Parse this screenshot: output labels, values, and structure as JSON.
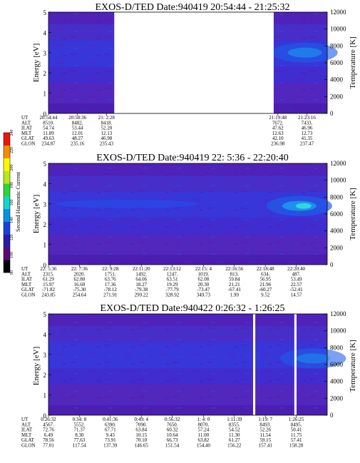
{
  "colorbar": {
    "label": "Second Harmonic Current",
    "ticks": [
      "80",
      "100",
      "120",
      "140",
      "160",
      "180",
      "200",
      "220",
      "240"
    ],
    "colors": [
      "#000000",
      "#5a0a78",
      "#2a1aa8",
      "#1840e0",
      "#0a90e8",
      "#10d8c8",
      "#28d838",
      "#b8e818",
      "#f8f800",
      "#f88c00",
      "#e81808"
    ]
  },
  "chart_data": [
    {
      "type": "heatmap",
      "title": "EXOS-D/TED   Date:940419  20:54:44 - 21:25:32",
      "ylabel": "Energy [eV]",
      "ylabel_right": "Temperature [K]",
      "ylim": [
        0,
        5
      ],
      "ylim_right": [
        0,
        12000
      ],
      "y_ticks": [
        "0",
        "1",
        "2",
        "3",
        "4",
        "5"
      ],
      "y_ticks_right": [
        "0",
        "2000",
        "4000",
        "6000",
        "8000",
        "10000",
        "12000"
      ],
      "data_gaps": [
        [
          0.236,
          0.808
        ]
      ],
      "intensity_peak": {
        "x_fraction": 0.92,
        "energy_eV": 3.0,
        "strength": 0.55
      },
      "ephemeris": {
        "labels": [
          "UT",
          "ALT",
          "ILAT",
          "MLT",
          "GLAT",
          "GLON"
        ],
        "columns": [
          {
            "x_fraction": 0.0,
            "values": [
              "20:54:44",
              "8510.",
              "54.74",
              "11.89",
              "49.63",
              "234.87"
            ]
          },
          {
            "x_fraction": 0.104,
            "values": [
              "20:58:36",
              "8482.",
              "53.44",
              "12.01",
              "48.27",
              "235.16"
            ]
          },
          {
            "x_fraction": 0.208,
            "values": [
              "21: 2:28",
              "8418.",
              "52.20",
              "12.13",
              "46.98",
              "235.43"
            ]
          },
          {
            "x_fraction": 0.823,
            "values": [
              "21:19:48",
              "7672.",
              "47.62",
              "12.63",
              "42.10",
              "236.98"
            ]
          },
          {
            "x_fraction": 0.927,
            "values": [
              "21:23:16",
              "7433.",
              "46.96",
              "12.73",
              "41.35",
              "237.47"
            ]
          }
        ]
      }
    },
    {
      "type": "heatmap",
      "title": "EXOS-D/TED   Date:940419  22: 5:36 - 22:20:40",
      "ylabel": "Energy [eV]",
      "ylabel_right": "Temperature [K]",
      "ylim": [
        0,
        5
      ],
      "ylim_right": [
        0,
        12000
      ],
      "y_ticks": [
        "0",
        "1",
        "2",
        "3",
        "4",
        "5"
      ],
      "y_ticks_right": [
        "0",
        "2000",
        "4000",
        "6000",
        "8000",
        "10000",
        "12000"
      ],
      "data_gaps": [],
      "intensity_peak": {
        "x_fraction": 0.9,
        "energy_eV": 2.9,
        "strength": 0.8
      },
      "ephemeris": {
        "labels": [
          "UT",
          "ALT",
          "ILAT",
          "MLT",
          "GLAT",
          "GLON"
        ],
        "columns": [
          {
            "x_fraction": 0.0,
            "values": [
              "22: 5:36",
              "2315.",
              "61.29",
              "15.97",
              "-71.82",
              "243.85"
            ]
          },
          {
            "x_fraction": 0.111,
            "values": [
              "22: 7:36",
              "2020.",
              "62.80",
              "16.60",
              "-75.30",
              "254.64"
            ]
          },
          {
            "x_fraction": 0.222,
            "values": [
              "22: 9:28",
              "1751.",
              "63.76",
              "17.36",
              "-78.12",
              "271.91"
            ]
          },
          {
            "x_fraction": 0.333,
            "values": [
              "22:11:20",
              "1492.",
              "64.06",
              "18.27",
              "-79.38",
              "299.22"
            ]
          },
          {
            "x_fraction": 0.444,
            "values": [
              "22:13:12",
              "1247.",
              "63.51",
              "19.29",
              "-77.79",
              "328.92"
            ]
          },
          {
            "x_fraction": 0.556,
            "values": [
              "22:15: 4",
              "1019.",
              "62.08",
              "20.30",
              "-73.47",
              "349.73"
            ]
          },
          {
            "x_fraction": 0.667,
            "values": [
              "22:16:56",
              "813.",
              "59.84",
              "21.21",
              "-67.41",
              "1.99"
            ]
          },
          {
            "x_fraction": 0.778,
            "values": [
              "22:18:48",
              "634.",
              "56.95",
              "21.96",
              "-60.27",
              "9.52"
            ]
          },
          {
            "x_fraction": 0.889,
            "values": [
              "22:20:40",
              "487.",
              "53.49",
              "22.57",
              "-52.41",
              "14.57"
            ]
          }
        ]
      }
    },
    {
      "type": "heatmap",
      "title": "EXOS-D/TED   Date:940422   0:26:32 -  1:26:25",
      "ylabel": "Energy [eV]",
      "ylabel_right": "Temperature [K]",
      "ylim": [
        0,
        5
      ],
      "ylim_right": [
        0,
        12000
      ],
      "y_ticks": [
        "0",
        "1",
        "2",
        "3",
        "4",
        "5"
      ],
      "y_ticks_right": [
        "0",
        "2000",
        "4000",
        "6000",
        "8000",
        "10000",
        "12000"
      ],
      "data_gaps": [
        [
          0.734,
          0.742
        ],
        [
          0.882,
          0.89
        ]
      ],
      "intensity_peak": {
        "x_fraction": 0.95,
        "energy_eV": 2.8,
        "strength": 0.45
      },
      "ephemeris": {
        "labels": [
          "UT",
          "ALT",
          "ILAT",
          "MLT",
          "GLAT",
          "GLON"
        ],
        "columns": [
          {
            "x_fraction": 0.0,
            "values": [
              "0:26:32",
              "4567.",
              "72.76",
              "6.49",
              "78.56",
              "77.01"
            ]
          },
          {
            "x_fraction": 0.111,
            "values": [
              "0:34: 8",
              "5552.",
              "71.37",
              "8.30",
              "77.63",
              "117.54"
            ]
          },
          {
            "x_fraction": 0.222,
            "values": [
              "0:41:36",
              "6390.",
              "67.71",
              "9.43",
              "73.91",
              "137.39"
            ]
          },
          {
            "x_fraction": 0.333,
            "values": [
              "0:49: 4",
              "7090.",
              "63.84",
              "10.15",
              "70.10",
              "146.65"
            ]
          },
          {
            "x_fraction": 0.444,
            "values": [
              "0:56:32",
              "7650.",
              "60.32",
              "10.64",
              "66.73",
              "151.54"
            ]
          },
          {
            "x_fraction": 0.556,
            "values": [
              "1: 4: 0",
              "8070.",
              "57.24",
              "11.00",
              "63.82",
              "154.40"
            ]
          },
          {
            "x_fraction": 0.667,
            "values": [
              "1:11:39",
              "8355.",
              "54.52",
              "11.30",
              "61.27",
              "156.22"
            ]
          },
          {
            "x_fraction": 0.778,
            "values": [
              "1:19: 7",
              "8493.",
              "52.26",
              "11.54",
              "59.15",
              "157.41"
            ]
          },
          {
            "x_fraction": 0.889,
            "values": [
              "1:26:25",
              "8495.",
              "50.41",
              "11.75",
              "57.41",
              "158.28"
            ]
          }
        ]
      }
    }
  ]
}
